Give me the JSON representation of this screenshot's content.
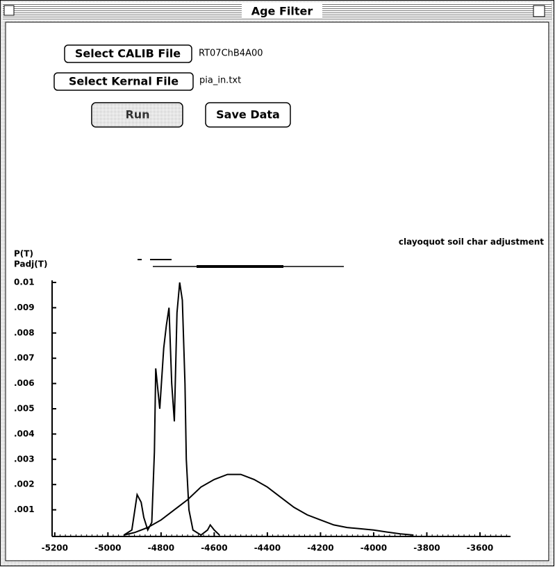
{
  "window": {
    "title": "Age Filter"
  },
  "buttons": {
    "calib": "Select CALIB File",
    "kernal": "Select Kernal File",
    "run": "Run",
    "save": "Save Data"
  },
  "files": {
    "calib": "RT07ChB4A00",
    "kernal": "pia_in.txt"
  },
  "chart_data": {
    "type": "line",
    "title": "clayoquot soil char adjustment",
    "series": [
      {
        "name": "P(T)",
        "color": "#000000",
        "x": [
          -4940,
          -4910,
          -4890,
          -4875,
          -4865,
          -4850,
          -4835,
          -4825,
          -4820,
          -4805,
          -4790,
          -4780,
          -4770,
          -4760,
          -4750,
          -4740,
          -4730,
          -4720,
          -4710,
          -4705,
          -4695,
          -4680,
          -4650,
          -4625,
          -4615,
          -4600,
          -4580
        ],
        "values": [
          0,
          0.0002,
          0.0016,
          0.0013,
          0.0007,
          0.0002,
          0.0005,
          0.0033,
          0.0066,
          0.005,
          0.0074,
          0.0083,
          0.009,
          0.006,
          0.0045,
          0.0088,
          0.01,
          0.0093,
          0.006,
          0.003,
          0.001,
          0.0002,
          0,
          0.0002,
          0.0004,
          0.0002,
          0
        ]
      },
      {
        "name": "Padj(T)",
        "color": "#000000",
        "x": [
          -4940,
          -4900,
          -4850,
          -4800,
          -4750,
          -4700,
          -4650,
          -4600,
          -4550,
          -4500,
          -4450,
          -4400,
          -4350,
          -4300,
          -4250,
          -4200,
          -4150,
          -4100,
          -4050,
          -4000,
          -3950,
          -3900,
          -3850
        ],
        "values": [
          0,
          0.0001,
          0.0003,
          0.0006,
          0.001,
          0.0014,
          0.0019,
          0.0022,
          0.0024,
          0.0024,
          0.0022,
          0.0019,
          0.0015,
          0.0011,
          0.0008,
          0.0006,
          0.0004,
          0.0003,
          0.00025,
          0.0002,
          0.00012,
          5e-05,
          0
        ]
      }
    ],
    "xlim": [
      -5210,
      -3485
    ],
    "xticks": [
      -5200,
      -5000,
      -4800,
      -4600,
      -4400,
      -4200,
      -4000,
      -3800,
      -3600
    ],
    "ylim": [
      0,
      0.01
    ],
    "yticks": [
      {
        "value": 0.01,
        "label": "0.01"
      },
      {
        "value": 0.009,
        "label": ".009"
      },
      {
        "value": 0.008,
        "label": ".008"
      },
      {
        "value": 0.007,
        "label": ".007"
      },
      {
        "value": 0.006,
        "label": ".006"
      },
      {
        "value": 0.005,
        "label": ".005"
      },
      {
        "value": 0.004,
        "label": ".004"
      },
      {
        "value": 0.003,
        "label": ".003"
      },
      {
        "value": 0.002,
        "label": ".002"
      },
      {
        "value": 0.001,
        "label": ".001"
      }
    ]
  }
}
